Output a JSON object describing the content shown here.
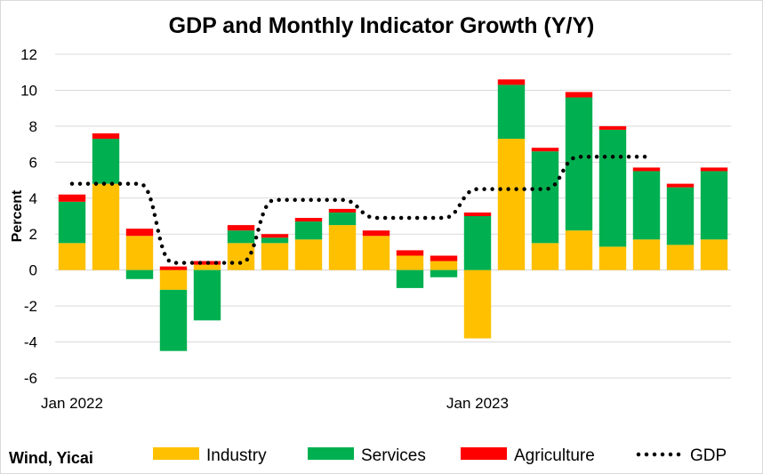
{
  "chart_data": {
    "type": "bar",
    "title": "GDP and Monthly Indicator Growth (Y/Y)",
    "xlabel": "",
    "ylabel": "Percent",
    "ylim": [
      -6,
      12
    ],
    "yticks": [
      -6,
      -4,
      -2,
      0,
      2,
      4,
      6,
      8,
      10,
      12
    ],
    "x_tick_labels": [
      {
        "index": 0,
        "label": "Jan 2022"
      },
      {
        "index": 12,
        "label": "Jan 2023"
      }
    ],
    "grid": true,
    "legend_position": "bottom",
    "stacked": true,
    "categories": [
      "2022-01",
      "2022-02",
      "2022-03",
      "2022-04",
      "2022-05",
      "2022-06",
      "2022-07",
      "2022-08",
      "2022-09",
      "2022-10",
      "2022-11",
      "2022-12",
      "2023-01",
      "2023-02",
      "2023-03",
      "2023-04",
      "2023-05",
      "2023-06",
      "2023-07",
      "2023-08"
    ],
    "series": [
      {
        "name": "Industry",
        "color": "#FFC000",
        "kind": "bar",
        "values": [
          1.5,
          4.8,
          1.9,
          -1.1,
          0.3,
          1.5,
          1.5,
          1.7,
          2.5,
          1.9,
          0.8,
          0.5,
          -3.8,
          7.3,
          1.5,
          2.2,
          1.3,
          1.7,
          1.4,
          1.7
        ]
      },
      {
        "name": "Services",
        "color": "#00B050",
        "kind": "bar",
        "values": [
          2.3,
          2.5,
          -0.5,
          -3.4,
          -2.8,
          0.7,
          0.3,
          1.0,
          0.7,
          0.0,
          -1.0,
          -0.4,
          3.0,
          3.0,
          5.1,
          7.4,
          6.5,
          3.8,
          3.2,
          3.8
        ]
      },
      {
        "name": "Agriculture",
        "color": "#FF0000",
        "kind": "bar",
        "values": [
          0.4,
          0.3,
          0.4,
          0.2,
          0.2,
          0.3,
          0.2,
          0.2,
          0.2,
          0.3,
          0.3,
          0.3,
          0.2,
          0.3,
          0.2,
          0.3,
          0.2,
          0.2,
          0.2,
          0.2
        ]
      },
      {
        "name": "GDP",
        "color": "#000000",
        "kind": "line",
        "style": "dotted",
        "values": [
          4.8,
          4.8,
          4.8,
          0.4,
          0.4,
          0.4,
          3.9,
          3.9,
          3.9,
          2.9,
          2.9,
          2.9,
          4.5,
          4.5,
          4.5,
          6.3,
          6.3,
          6.3,
          null,
          null
        ]
      }
    ],
    "source": "Wind, Yicai"
  }
}
